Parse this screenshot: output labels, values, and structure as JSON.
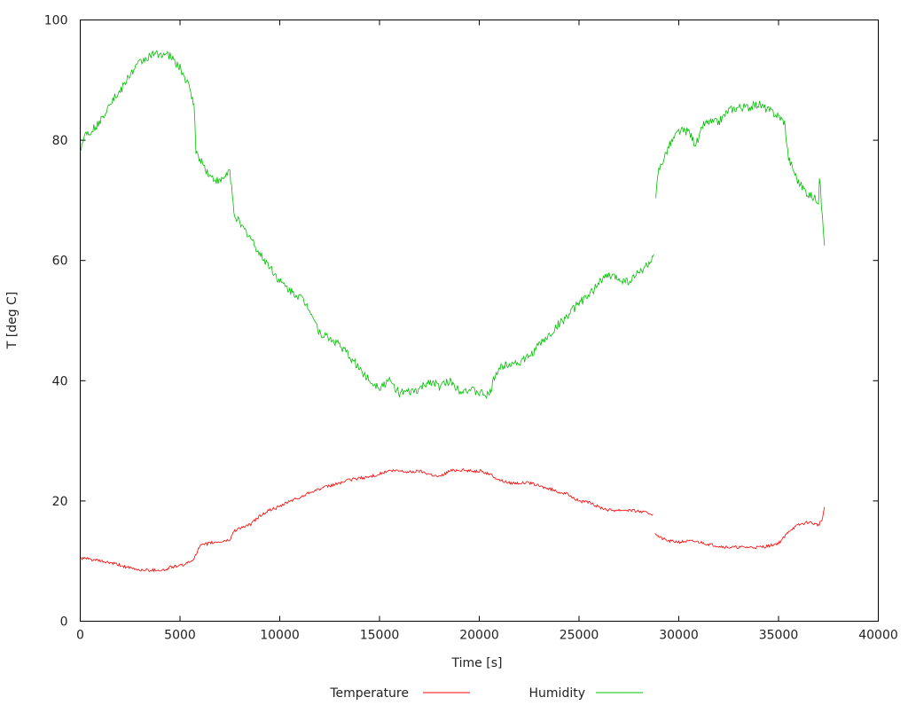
{
  "chart_data": {
    "type": "line",
    "title": "",
    "xlabel": "Time [s]",
    "ylabel": "T [deg C]",
    "xlim": [
      0,
      40000
    ],
    "ylim": [
      0,
      100
    ],
    "xticks": [
      0,
      5000,
      10000,
      15000,
      20000,
      25000,
      30000,
      35000,
      40000
    ],
    "yticks": [
      0,
      20,
      40,
      60,
      80,
      100
    ],
    "grid": false,
    "legend_position": "bottom",
    "series": [
      {
        "name": "Temperature",
        "color": "#ff0000",
        "x": [
          0,
          500,
          1000,
          1500,
          2000,
          2500,
          3000,
          3500,
          4000,
          4300,
          4500,
          5000,
          5500,
          5700,
          6000,
          6500,
          7000,
          7500,
          7700,
          8000,
          8500,
          9000,
          9500,
          10000,
          10500,
          11000,
          11500,
          12000,
          12500,
          13000,
          13500,
          14000,
          14500,
          15000,
          15500,
          16000,
          16500,
          17000,
          17500,
          18000,
          18500,
          19000,
          19500,
          20000,
          20500,
          21000,
          21500,
          22000,
          22500,
          23000,
          23500,
          24000,
          24500,
          25000,
          25500,
          26000,
          26500,
          27000,
          27500,
          28000,
          28700,
          28750,
          28800,
          29000,
          29500,
          30000,
          30500,
          31000,
          31500,
          32000,
          32500,
          33000,
          33500,
          34000,
          34500,
          35000,
          35300,
          35500,
          36000,
          36500,
          37000,
          37200,
          37300
        ],
        "y": [
          10.5,
          10.3,
          10,
          9.7,
          9.3,
          8.8,
          8.5,
          8.5,
          8.5,
          8.5,
          9,
          9.2,
          9.8,
          10.5,
          12.5,
          13,
          13.2,
          13.5,
          15,
          15.5,
          16,
          17.5,
          18.5,
          19,
          20,
          20.5,
          21.5,
          22,
          22.5,
          23,
          23.5,
          23.8,
          24,
          24.5,
          25,
          25,
          24.8,
          25,
          24.5,
          24,
          25,
          25.2,
          25,
          25,
          24.5,
          23.5,
          23,
          23,
          23,
          22.5,
          22,
          21.5,
          21,
          20,
          19.7,
          19,
          18.5,
          18.5,
          18.5,
          18.3,
          17.8,
          null,
          14.8,
          14,
          13.3,
          13.2,
          13.3,
          13.2,
          12.8,
          12.5,
          12.3,
          12.3,
          12.3,
          12.3,
          12.5,
          13,
          14,
          15,
          16,
          16.5,
          16,
          17,
          19
        ]
      },
      {
        "name": "Humidity",
        "color": "#00c000",
        "x": [
          0,
          200,
          500,
          1000,
          1500,
          2000,
          2500,
          3000,
          3500,
          4000,
          4500,
          5000,
          5500,
          5700,
          5800,
          6000,
          6500,
          7000,
          7500,
          7700,
          8000,
          8500,
          9000,
          9500,
          10000,
          10500,
          11000,
          11500,
          12000,
          12500,
          13000,
          13500,
          14000,
          14500,
          15000,
          15500,
          16000,
          16500,
          17000,
          17500,
          18000,
          18500,
          19000,
          19500,
          20000,
          20500,
          20800,
          21000,
          21500,
          22000,
          22500,
          23000,
          23500,
          24000,
          24500,
          25000,
          25500,
          26000,
          26500,
          27000,
          27500,
          28000,
          28500,
          28750,
          28800,
          28850,
          29000,
          29500,
          30000,
          30500,
          30800,
          31000,
          31200,
          31500,
          32000,
          32500,
          33000,
          33500,
          34000,
          34500,
          35000,
          35300,
          35500,
          36000,
          36500,
          37000,
          37050,
          37200,
          37300
        ],
        "y": [
          78,
          81,
          81.5,
          83,
          86.5,
          88,
          91,
          93,
          94,
          94.5,
          94,
          92,
          88.5,
          86,
          78,
          77,
          74,
          73,
          75,
          68,
          66,
          64,
          61,
          59,
          56.5,
          55,
          54,
          52,
          48,
          47,
          46,
          44,
          42,
          40,
          39,
          40,
          38,
          38,
          38.5,
          40,
          39,
          40,
          38.5,
          38.5,
          38,
          37.5,
          41,
          42,
          43,
          43,
          44,
          46,
          47.5,
          49.5,
          51,
          53,
          54,
          56.5,
          57.5,
          57,
          56.5,
          58,
          59.5,
          61,
          null,
          71,
          75,
          79,
          81.5,
          81.5,
          79.5,
          80,
          82.5,
          83,
          83,
          85,
          85.5,
          85.5,
          86,
          85,
          84,
          83,
          77,
          73,
          71,
          70,
          74,
          67,
          62.5
        ]
      }
    ]
  }
}
